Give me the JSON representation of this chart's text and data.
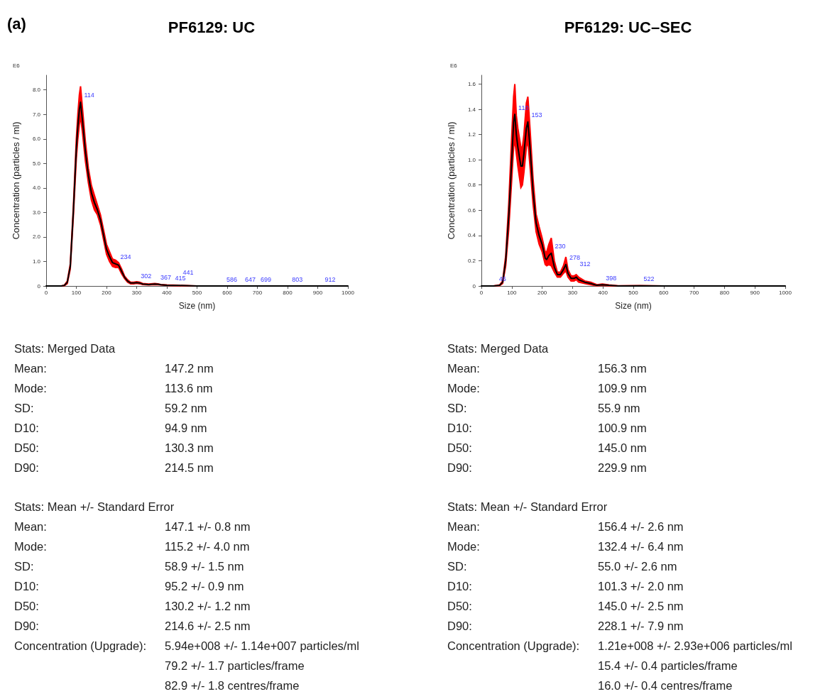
{
  "chart_data": [
    {
      "type": "line",
      "title": "PF6129: UC",
      "xlabel": "Size (nm)",
      "ylabel": "Concentration (particles / ml)",
      "xlim": [
        0,
        1000
      ],
      "xticks": [
        0,
        100,
        200,
        300,
        400,
        500,
        600,
        700,
        800,
        900,
        1000
      ],
      "ylim": [
        0,
        8.6
      ],
      "yticks": [
        0,
        {
          "value": 1,
          "label": "1.0"
        },
        {
          "value": 2,
          "label": "2.0"
        },
        {
          "value": 3,
          "label": "3.0"
        },
        {
          "value": 4,
          "label": "4.0"
        },
        {
          "value": 5,
          "label": "5.0"
        },
        {
          "value": 6,
          "label": "6.0"
        },
        {
          "value": 7,
          "label": "7.0"
        },
        {
          "value": 8,
          "label": "8.0"
        }
      ],
      "marker": "none",
      "line_style": "solid",
      "annotations": [
        "(a)",
        "E6",
        {
          "text": "114",
          "x": 114,
          "y": 7.5
        },
        {
          "text": "234",
          "x": 234,
          "y": 0.9
        },
        {
          "text": "302",
          "x": 302,
          "y": 0.14
        },
        {
          "text": "367",
          "x": 367,
          "y": 0.08
        },
        {
          "text": "415",
          "x": 415,
          "y": 0.03
        },
        {
          "text": "441",
          "x": 441,
          "y": 0.02
        },
        {
          "text": "586",
          "x": 586,
          "y": 0
        },
        {
          "text": "647",
          "x": 647,
          "y": 0
        },
        {
          "text": "699",
          "x": 699,
          "y": 0
        },
        {
          "text": "803",
          "x": 803,
          "y": 0
        },
        {
          "text": "912",
          "x": 912,
          "y": 0
        }
      ],
      "series": [
        {
          "color": "#000000",
          "x": [
            0,
            50,
            60,
            70,
            80,
            90,
            100,
            105,
            110,
            114,
            120,
            130,
            140,
            150,
            160,
            170,
            180,
            190,
            200,
            210,
            220,
            230,
            240,
            250,
            260,
            270,
            280,
            290,
            300,
            310,
            320,
            340,
            360,
            370,
            380,
            400,
            440,
            480,
            500,
            1000
          ],
          "values": [
            0,
            0,
            0.02,
            0.15,
            0.8,
            3.0,
            5.6,
            6.5,
            7.2,
            7.5,
            6.8,
            5.5,
            4.5,
            3.8,
            3.4,
            3.1,
            2.7,
            2.1,
            1.5,
            1.2,
            0.95,
            0.9,
            0.85,
            0.6,
            0.35,
            0.2,
            0.12,
            0.12,
            0.14,
            0.12,
            0.08,
            0.06,
            0.08,
            0.07,
            0.05,
            0.03,
            0.02,
            0.01,
            0,
            0
          ],
          "upper": [
            0,
            0,
            0.03,
            0.2,
            0.9,
            3.2,
            6.0,
            7.0,
            7.8,
            8.15,
            7.3,
            5.9,
            4.8,
            4.1,
            3.7,
            3.3,
            2.9,
            2.3,
            1.7,
            1.4,
            1.1,
            1.05,
            0.95,
            0.7,
            0.4,
            0.25,
            0.15,
            0.15,
            0.17,
            0.15,
            0.1,
            0.08,
            0.1,
            0.09,
            0.06,
            0.04,
            0.03,
            0.01,
            0,
            0
          ],
          "lower": [
            0,
            0,
            0.01,
            0.1,
            0.7,
            2.8,
            5.2,
            6.0,
            6.6,
            6.9,
            6.3,
            5.1,
            4.2,
            3.5,
            3.1,
            2.9,
            2.5,
            1.9,
            1.3,
            1.0,
            0.8,
            0.75,
            0.75,
            0.5,
            0.3,
            0.15,
            0.09,
            0.09,
            0.11,
            0.09,
            0.06,
            0.04,
            0.06,
            0.05,
            0.04,
            0.02,
            0.01,
            0.01,
            0,
            0
          ]
        }
      ]
    },
    {
      "type": "line",
      "title": "PF6129: UC–SEC",
      "xlabel": "Size (nm)",
      "ylabel": "Concentration (particles / ml)",
      "xlim": [
        0,
        1000
      ],
      "xticks": [
        0,
        100,
        200,
        300,
        400,
        500,
        600,
        700,
        800,
        900,
        1000
      ],
      "ylim": [
        0,
        1.67
      ],
      "yticks": [
        0,
        0.2,
        0.4,
        0.6,
        0.8,
        {
          "value": 1,
          "label": "1.0"
        },
        1.2,
        1.4,
        1.6
      ],
      "marker": "none",
      "line_style": "solid",
      "annotations": [
        "E6",
        {
          "text": "46",
          "x": 46,
          "y": 0.002
        },
        {
          "text": "110",
          "x": 110,
          "y": 1.36
        },
        {
          "text": "153",
          "x": 153,
          "y": 1.3
        },
        {
          "text": "230",
          "x": 230,
          "y": 0.26
        },
        {
          "text": "278",
          "x": 278,
          "y": 0.17
        },
        {
          "text": "312",
          "x": 312,
          "y": 0.07
        },
        {
          "text": "398",
          "x": 398,
          "y": 0.01
        },
        {
          "text": "522",
          "x": 522,
          "y": 0.002
        }
      ],
      "series": [
        {
          "color": "#000000",
          "x": [
            0,
            40,
            46,
            60,
            70,
            80,
            90,
            100,
            106,
            110,
            115,
            120,
            130,
            135,
            140,
            148,
            153,
            160,
            170,
            180,
            190,
            200,
            210,
            215,
            222,
            230,
            240,
            250,
            260,
            270,
            278,
            285,
            295,
            305,
            312,
            320,
            340,
            360,
            380,
            398,
            420,
            450,
            522,
            600,
            1000
          ],
          "values": [
            0,
            0,
            0.002,
            0.005,
            0.03,
            0.2,
            0.55,
            1.0,
            1.3,
            1.36,
            1.2,
            1.1,
            0.95,
            0.95,
            1.05,
            1.25,
            1.3,
            1.1,
            0.75,
            0.5,
            0.4,
            0.33,
            0.22,
            0.21,
            0.24,
            0.26,
            0.15,
            0.09,
            0.09,
            0.13,
            0.17,
            0.1,
            0.06,
            0.06,
            0.07,
            0.05,
            0.03,
            0.02,
            0.005,
            0.01,
            0.005,
            0,
            0.002,
            0,
            0
          ],
          "upper": [
            0,
            0,
            0.003,
            0.008,
            0.04,
            0.24,
            0.65,
            1.2,
            1.5,
            1.6,
            1.35,
            1.25,
            1.1,
            1.1,
            1.2,
            1.45,
            1.5,
            1.25,
            0.85,
            0.57,
            0.47,
            0.38,
            0.27,
            0.27,
            0.33,
            0.38,
            0.2,
            0.11,
            0.11,
            0.16,
            0.23,
            0.13,
            0.08,
            0.08,
            0.09,
            0.07,
            0.04,
            0.03,
            0.01,
            0.015,
            0.008,
            0.002,
            0.003,
            0,
            0
          ],
          "lower": [
            0,
            0,
            0.001,
            0.003,
            0.02,
            0.16,
            0.45,
            0.85,
            1.1,
            1.15,
            1.05,
            0.95,
            0.78,
            0.8,
            0.9,
            1.1,
            1.15,
            0.95,
            0.65,
            0.43,
            0.33,
            0.27,
            0.17,
            0.16,
            0.17,
            0.16,
            0.11,
            0.07,
            0.07,
            0.1,
            0.12,
            0.07,
            0.04,
            0.04,
            0.05,
            0.03,
            0.02,
            0.01,
            0.002,
            0.005,
            0.002,
            0,
            0.001,
            0,
            0
          ]
        }
      ]
    },
    {
      "type": "other",
      "title": "Stats: Merged Data",
      "annotations": [
        "Mean:",
        "147.2 nm",
        "Mode:",
        "113.6 nm",
        "SD:",
        "59.2 nm",
        "D10:",
        "94.9 nm",
        "D50:",
        "130.3 nm",
        "D90:",
        "214.5 nm"
      ]
    },
    {
      "type": "other",
      "title": "Stats: Mean +/- Standard Error",
      "annotations": [
        "Mean:",
        "147.1 +/- 0.8 nm",
        "Mode:",
        "115.2 +/- 4.0 nm",
        "SD:",
        "58.9 +/- 1.5 nm",
        "D10:",
        "95.2 +/- 0.9 nm",
        "D50:",
        "130.2 +/- 1.2 nm",
        "D90:",
        "214.6 +/- 2.5 nm",
        "Concentration (Upgrade):",
        "5.94e+008 +/- 1.14e+007 particles/ml\n79.2 +/- 1.7 particles/frame\n82.9 +/- 1.8 centres/frame"
      ]
    },
    {
      "type": "other",
      "title": "Stats: Merged Data",
      "annotations": [
        "Mean:",
        "156.3 nm",
        "Mode:",
        "109.9 nm",
        "SD:",
        "55.9 nm",
        "D10:",
        "100.9 nm",
        "D50:",
        "145.0 nm",
        "D90:",
        "229.9 nm"
      ]
    },
    {
      "type": "other",
      "title": "Stats: Mean +/- Standard Error",
      "annotations": [
        "Mean:",
        "156.4 +/- 2.6 nm",
        "Mode:",
        "132.4 +/- 6.4 nm",
        "SD:",
        "55.0 +/- 2.6 nm",
        "D10:",
        "101.3 +/- 2.0 nm",
        "D50:",
        "145.0 +/- 2.5 nm",
        "D90:",
        "228.1 +/- 7.9 nm",
        "Concentration (Upgrade):",
        "1.21e+008 +/- 2.93e+006 particles/ml\n15.4 +/- 0.4 particles/frame\n16.0 +/- 0.4 centres/frame"
      ]
    }
  ]
}
